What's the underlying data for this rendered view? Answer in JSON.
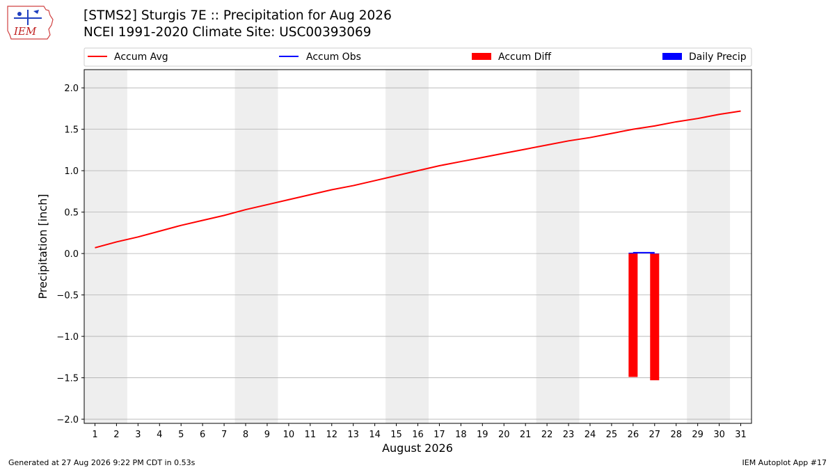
{
  "header": {
    "logo_text": "IEM",
    "title": "[STMS2] Sturgis 7E :: Precipitation for Aug 2026",
    "subtitle": "NCEI 1991-2020 Climate Site: USC00393069"
  },
  "footer": {
    "generated": "Generated at 27 Aug 2026 9:22 PM CDT in 0.53s",
    "app": "IEM Autoplot App #17"
  },
  "colors": {
    "accum_avg": "#ff0000",
    "accum_obs": "#0000ff",
    "accum_diff": "#ff0000",
    "daily_precip": "#0000ff",
    "weekend_shade": "#eeeeee",
    "grid": "#b0b0b0"
  },
  "chart_data": {
    "type": "line",
    "xlabel": "August 2026",
    "ylabel": "Precipitation [inch]",
    "xlim": [
      0.5,
      31.5
    ],
    "ylim": [
      -2.05,
      2.22
    ],
    "x_ticks": [
      1,
      2,
      3,
      4,
      5,
      6,
      7,
      8,
      9,
      10,
      11,
      12,
      13,
      14,
      15,
      16,
      17,
      18,
      19,
      20,
      21,
      22,
      23,
      24,
      25,
      26,
      27,
      28,
      29,
      30,
      31
    ],
    "y_ticks": [
      -2.0,
      -1.5,
      -1.0,
      -0.5,
      0.0,
      0.5,
      1.0,
      1.5,
      2.0
    ],
    "y_tick_labels": [
      "−2.0",
      "−1.5",
      "−1.0",
      "−0.5",
      "0.0",
      "0.5",
      "1.0",
      "1.5",
      "2.0"
    ],
    "grid": "horizontal",
    "legend_position": "top",
    "weekend_bands": [
      [
        0.5,
        2.5
      ],
      [
        7.5,
        9.5
      ],
      [
        14.5,
        16.5
      ],
      [
        21.5,
        23.5
      ],
      [
        28.5,
        30.5
      ]
    ],
    "series": [
      {
        "name": "Accum Avg",
        "kind": "line",
        "x": [
          1,
          2,
          3,
          4,
          5,
          6,
          7,
          8,
          9,
          10,
          11,
          12,
          13,
          14,
          15,
          16,
          17,
          18,
          19,
          20,
          21,
          22,
          23,
          24,
          25,
          26,
          27,
          28,
          29,
          30,
          31
        ],
        "values": [
          0.07,
          0.14,
          0.2,
          0.27,
          0.34,
          0.4,
          0.46,
          0.53,
          0.59,
          0.65,
          0.71,
          0.77,
          0.82,
          0.88,
          0.94,
          1.0,
          1.06,
          1.11,
          1.16,
          1.21,
          1.26,
          1.31,
          1.36,
          1.4,
          1.45,
          1.5,
          1.54,
          1.59,
          1.63,
          1.68,
          1.72
        ]
      },
      {
        "name": "Accum Obs",
        "kind": "line",
        "x": [
          26,
          27
        ],
        "values": [
          0.01,
          0.01
        ]
      },
      {
        "name": "Accum Diff",
        "kind": "bar",
        "x": [
          26,
          27
        ],
        "values": [
          -1.49,
          -1.53
        ]
      },
      {
        "name": "Daily Precip",
        "kind": "bar",
        "x": [
          26,
          27
        ],
        "values": [
          0.01,
          0.0
        ]
      }
    ]
  }
}
